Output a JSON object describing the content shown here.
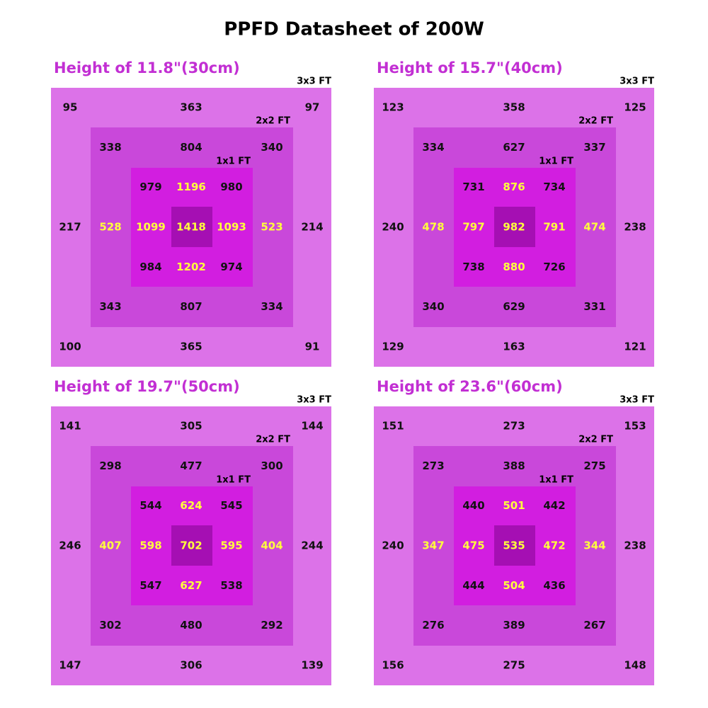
{
  "title": "PPFD Datasheet of 200W",
  "panels": [
    {
      "heading": "Height of 11.8\"(30cm)",
      "area_labels": [
        "3x3 FT",
        "2x2 FT",
        "1x1 FT"
      ],
      "outer": [
        95,
        363,
        97,
        217,
        214,
        100,
        365,
        91
      ],
      "middle": [
        338,
        804,
        340,
        528,
        523,
        343,
        807,
        334
      ],
      "inner": [
        979,
        1196,
        980,
        1099,
        1093,
        984,
        1202,
        974
      ],
      "center": 1418
    },
    {
      "heading": "Height of 15.7\"(40cm)",
      "area_labels": [
        "3x3 FT",
        "2x2 FT",
        "1x1 FT"
      ],
      "outer": [
        123,
        358,
        125,
        240,
        238,
        129,
        163,
        121
      ],
      "middle": [
        334,
        627,
        337,
        478,
        474,
        340,
        629,
        331
      ],
      "inner": [
        731,
        876,
        734,
        797,
        791,
        738,
        880,
        726
      ],
      "center": 982
    },
    {
      "heading": "Height of 19.7\"(50cm)",
      "area_labels": [
        "3x3 FT",
        "2x2 FT",
        "1x1 FT"
      ],
      "outer": [
        141,
        305,
        144,
        246,
        244,
        147,
        306,
        139
      ],
      "middle": [
        298,
        477,
        300,
        407,
        404,
        302,
        480,
        292
      ],
      "inner": [
        544,
        624,
        545,
        598,
        595,
        547,
        627,
        538
      ],
      "center": 702
    },
    {
      "heading": "Height of 23.6\"(60cm)",
      "area_labels": [
        "3x3 FT",
        "2x2 FT",
        "1x1 FT"
      ],
      "outer": [
        151,
        273,
        153,
        240,
        238,
        156,
        275,
        148
      ],
      "middle": [
        273,
        388,
        275,
        347,
        344,
        276,
        389,
        267
      ],
      "inner": [
        440,
        501,
        442,
        475,
        472,
        444,
        504,
        436
      ],
      "center": 535
    }
  ]
}
